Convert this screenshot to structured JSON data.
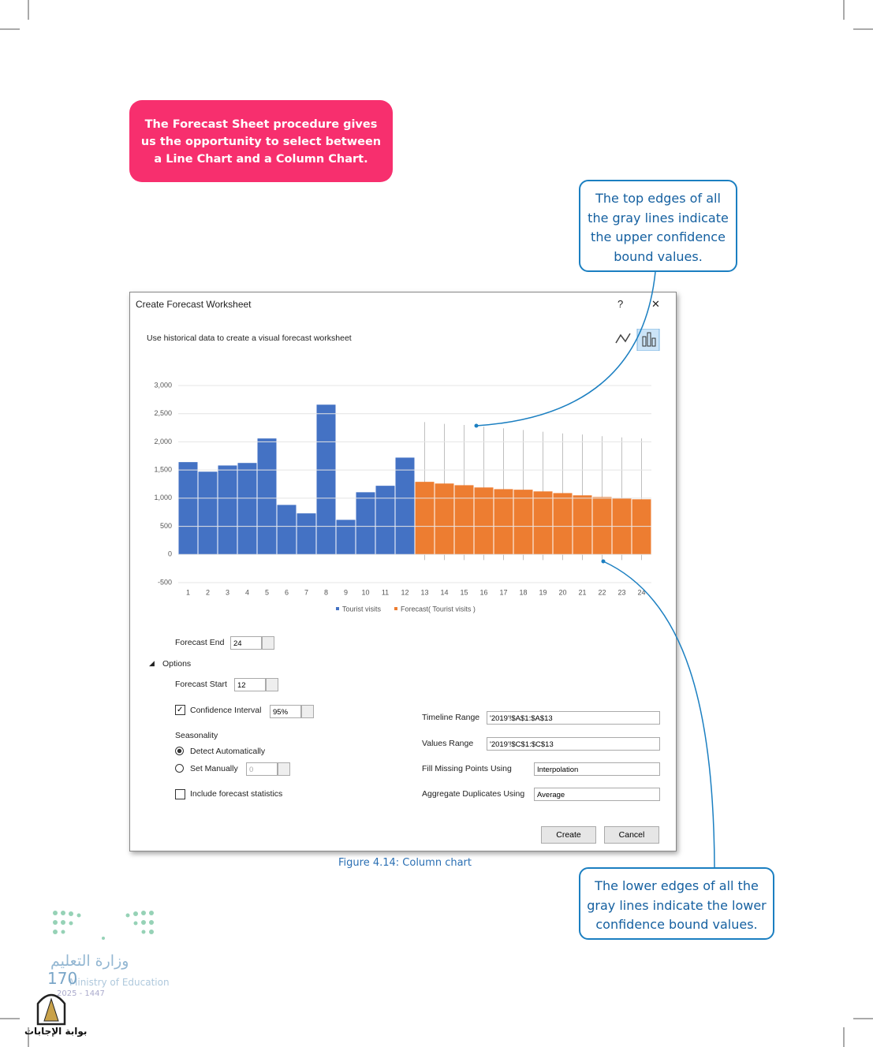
{
  "callout_top": "The Forecast Sheet procedure gives us the opportunity to select between a Line Chart and a Column Chart.",
  "callout_upper": "The top edges of all the gray lines indicate the upper confidence bound values.",
  "callout_lower": "The lower edges of all the gray lines indicate the lower confidence bound values.",
  "dialog": {
    "title": "Create Forecast Worksheet",
    "help": "?",
    "close": "✕",
    "subtitle": "Use historical data to create a visual forecast worksheet",
    "forecast_end_label": "Forecast End",
    "forecast_end": "24",
    "options": "Options",
    "forecast_start_label": "Forecast Start",
    "forecast_start": "12",
    "confidence_label": "Confidence Interval",
    "confidence": "95%",
    "seasonality": "Seasonality",
    "detect": "Detect Automatically",
    "set_manually": "Set Manually",
    "manual_value": "0",
    "statistics": "Include forecast statistics",
    "timeline_label": "Timeline Range",
    "timeline": "'2019'!$A$1:$A$13",
    "values_label": "Values Range",
    "values": "'2019'!$C$1:$C$13",
    "fill_label": "Fill Missing Points Using",
    "fill": "Interpolation",
    "aggregate_label": "Aggregate Duplicates Using",
    "aggregate": "Average",
    "create": "Create",
    "cancel": "Cancel"
  },
  "chart_data": {
    "type": "bar",
    "categories": [
      "1",
      "2",
      "3",
      "4",
      "5",
      "6",
      "7",
      "8",
      "9",
      "10",
      "11",
      "12",
      "13",
      "14",
      "15",
      "16",
      "17",
      "18",
      "19",
      "20",
      "21",
      "22",
      "23",
      "24"
    ],
    "series": [
      {
        "name": "Tourist visits",
        "color": "#4472c4",
        "values": [
          1640,
          1470,
          1580,
          1625,
          2060,
          880,
          730,
          2660,
          615,
          1105,
          1220,
          1720,
          null,
          null,
          null,
          null,
          null,
          null,
          null,
          null,
          null,
          null,
          null,
          null
        ]
      },
      {
        "name": "Forecast( Tourist visits )",
        "color": "#ed7d31",
        "values": [
          null,
          null,
          null,
          null,
          null,
          null,
          null,
          null,
          null,
          null,
          null,
          null,
          1290,
          1260,
          1230,
          1190,
          1160,
          1150,
          1120,
          1090,
          1050,
          1020,
          995,
          980
        ]
      }
    ],
    "upper_bound": [
      null,
      null,
      null,
      null,
      null,
      null,
      null,
      null,
      null,
      null,
      null,
      null,
      2350,
      2320,
      2300,
      2270,
      2240,
      2210,
      2180,
      2150,
      2130,
      2100,
      2080,
      2060
    ],
    "lower_bound": [
      null,
      null,
      null,
      null,
      null,
      null,
      null,
      null,
      null,
      null,
      null,
      null,
      -100,
      -100,
      -100,
      -100,
      -100,
      -100,
      -100,
      -100,
      -100,
      -100,
      -100,
      -100
    ],
    "bound_color": "#bfbfbf",
    "ylim": [
      -500,
      3000
    ],
    "yticks": [
      -500,
      0,
      500,
      {
        "value": 1000,
        "label": "1,000"
      },
      {
        "value": 1500,
        "label": "1,500"
      },
      {
        "value": 2000,
        "label": "2,000"
      },
      {
        "value": 2500,
        "label": "2,500"
      },
      {
        "value": 3000,
        "label": "3,000"
      }
    ],
    "grid": true,
    "legend": "bottom"
  },
  "caption": "Figure 4.14: Column chart",
  "page_number": "170",
  "ministry_ar": "وزارة التعليم",
  "ministry_en": "Ministry of Education",
  "years": "2025 - 1447",
  "watermark": "بوابة الإجابات"
}
